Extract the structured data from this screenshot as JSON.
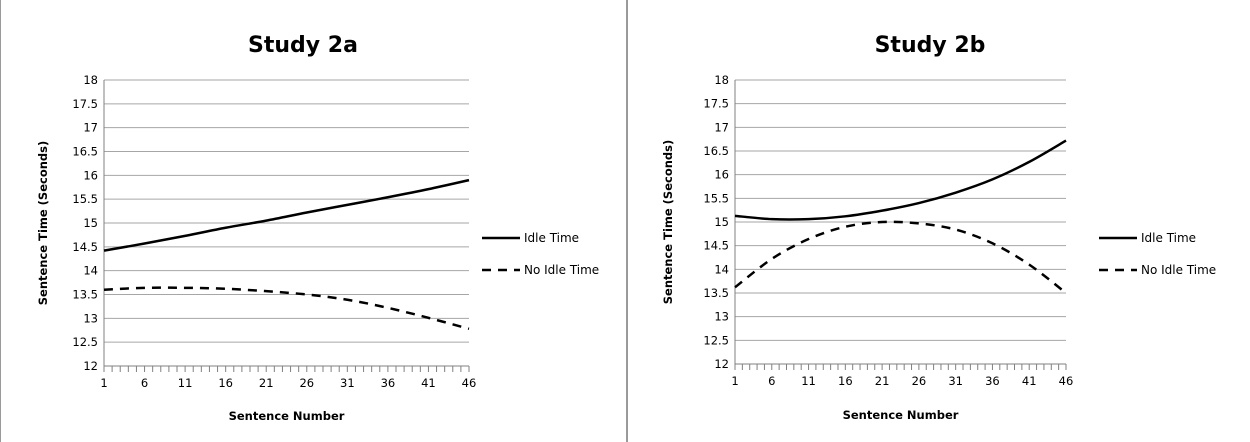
{
  "chart_data": [
    {
      "type": "line",
      "title": "Study 2a",
      "xlabel": "Sentence Number",
      "ylabel": "Sentence Time (Seconds)",
      "ylim": [
        12,
        18
      ],
      "xlim": [
        1,
        46
      ],
      "yticks": [
        "12",
        "12.5",
        "13",
        "13.5",
        "14",
        "14.5",
        "15",
        "15.5",
        "16",
        "16.5",
        "17",
        "17.5",
        "18"
      ],
      "xticks": [
        "1",
        "6",
        "11",
        "16",
        "21",
        "26",
        "31",
        "36",
        "41",
        "46"
      ],
      "grid": true,
      "legend_position": "right",
      "series": [
        {
          "name": "Idle Time",
          "style": "solid",
          "x": [
            1,
            6,
            11,
            16,
            21,
            26,
            31,
            36,
            41,
            46
          ],
          "y": [
            14.42,
            14.57,
            14.73,
            14.9,
            15.05,
            15.22,
            15.38,
            15.54,
            15.71,
            15.9
          ]
        },
        {
          "name": "No Idle Time",
          "style": "dashed",
          "x": [
            1,
            6,
            11,
            16,
            21,
            26,
            31,
            36,
            41,
            46
          ],
          "y": [
            13.6,
            13.64,
            13.64,
            13.62,
            13.57,
            13.5,
            13.39,
            13.22,
            13.01,
            12.78
          ]
        }
      ]
    },
    {
      "type": "line",
      "title": "Study 2b",
      "xlabel": "Sentence Number",
      "ylabel": "Sentence Time (Seconds)",
      "ylim": [
        12,
        18
      ],
      "xlim": [
        1,
        46
      ],
      "yticks": [
        "12",
        "12.5",
        "13",
        "13.5",
        "14",
        "14.5",
        "15",
        "15.5",
        "16",
        "16.5",
        "17",
        "17.5",
        "18"
      ],
      "xticks": [
        "1",
        "6",
        "11",
        "16",
        "21",
        "26",
        "31",
        "36",
        "41",
        "46"
      ],
      "grid": true,
      "legend_position": "right",
      "series": [
        {
          "name": "Idle Time",
          "style": "solid",
          "x": [
            1,
            6,
            11,
            16,
            21,
            26,
            31,
            36,
            41,
            46
          ],
          "y": [
            15.13,
            15.06,
            15.06,
            15.12,
            15.24,
            15.4,
            15.62,
            15.9,
            16.27,
            16.72
          ]
        },
        {
          "name": "No Idle Time",
          "style": "dashed",
          "x": [
            1,
            6,
            11,
            16,
            21,
            26,
            31,
            36,
            41,
            46
          ],
          "y": [
            13.62,
            14.22,
            14.64,
            14.9,
            15.0,
            14.97,
            14.84,
            14.55,
            14.1,
            13.5
          ]
        }
      ]
    }
  ]
}
